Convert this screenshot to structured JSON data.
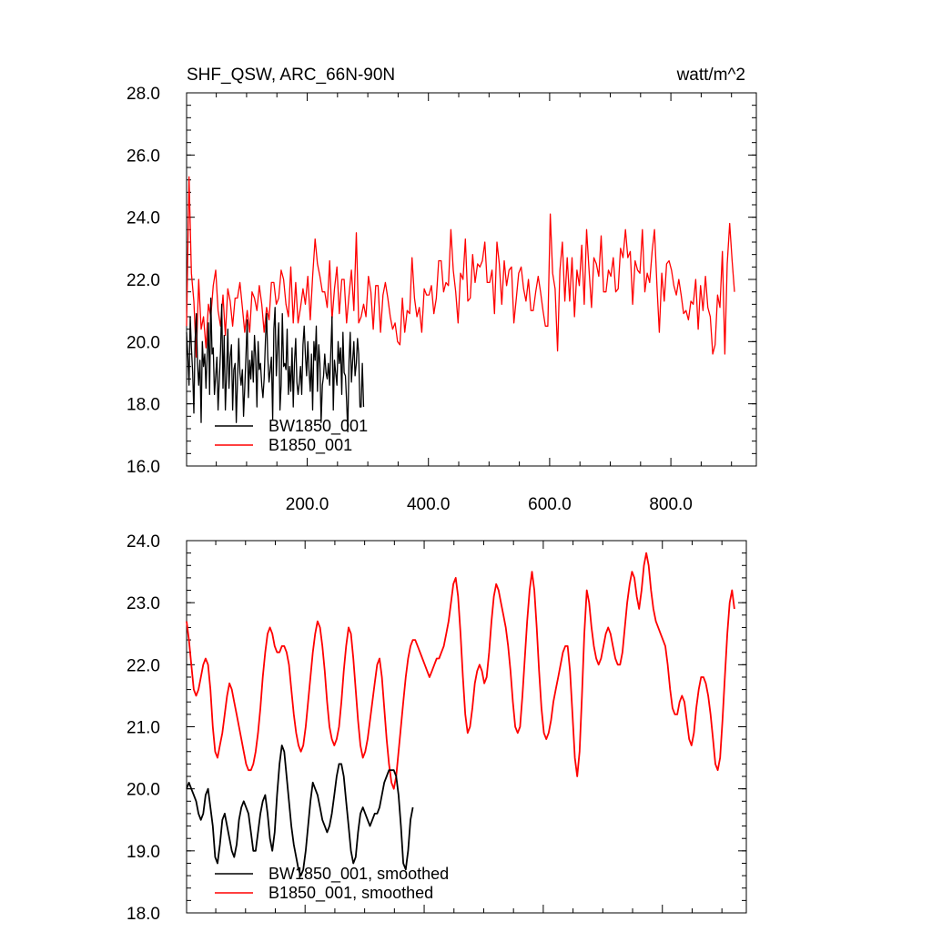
{
  "chart_data": [
    {
      "type": "line",
      "title": "SHF_QSW, ARC_66N-90N",
      "units": "watt/m^2",
      "xlim": [
        1,
        941
      ],
      "ylim": [
        16.0,
        28.0
      ],
      "yticks": [
        "16.0",
        "18.0",
        "20.0",
        "22.0",
        "24.0",
        "26.0",
        "28.0"
      ],
      "xticks": [
        "200.0",
        "400.0",
        "600.0",
        "800.0"
      ],
      "legend_position": "bottom-left",
      "series": [
        {
          "name": "BW1850_001",
          "color": "#000000",
          "x_start": 1,
          "x_step": 2,
          "values": [
            20.3,
            19.6,
            18.6,
            20.8,
            19.8,
            19.0,
            17.7,
            20.0,
            20.9,
            19.3,
            18.6,
            19.4,
            17.4,
            20.0,
            19.2,
            19.6,
            18.5,
            19.5,
            20.6,
            18.3,
            21.4,
            19.6,
            19.8,
            18.3,
            18.9,
            19.5,
            17.8,
            18.8,
            19.7,
            21.2,
            18.5,
            20.2,
            17.8,
            19.0,
            20.4,
            18.5,
            19.5,
            19.9,
            17.8,
            19.1,
            19.3,
            17.4,
            18.7,
            20.1,
            19.0,
            18.6,
            19.1,
            17.6,
            18.5,
            19.6,
            20.7,
            18.2,
            19.4,
            18.8,
            19.7,
            18.7,
            20.2,
            19.5,
            17.9,
            20.0,
            19.1,
            19.3,
            18.6,
            18.2,
            18.8,
            20.0,
            20.9,
            19.5,
            18.7,
            19.1,
            19.5,
            17.5,
            20.4,
            21.1,
            18.9,
            19.8,
            20.6,
            17.8,
            18.6,
            20.9,
            19.2,
            19.3,
            19.1,
            20.4,
            18.3,
            19.2,
            18.4,
            19.8,
            17.9,
            19.3,
            20.1,
            18.7,
            18.3,
            18.7,
            19.2,
            18.3,
            19.9,
            20.5,
            19.6,
            18.9,
            20.0,
            19.1,
            18.4,
            19.6,
            17.8,
            20.0,
            19.4,
            20.5,
            18.4,
            19.9,
            19.3,
            17.4,
            18.6,
            18.9,
            19.6,
            19.0,
            18.8,
            19.3,
            18.6,
            19.7,
            20.8,
            17.8,
            19.4,
            19.0,
            18.6,
            20.0,
            19.3,
            19.8,
            18.3,
            20.3,
            19.0,
            18.9,
            18.1,
            17.1,
            19.4,
            20.3,
            18.7,
            19.4,
            20.0,
            18.9,
            19.3,
            20.1,
            19.6,
            17.9,
            17.9,
            19.3,
            17.9
          ]
        },
        {
          "name": "B1850_001",
          "color": "#ff0000",
          "x_start": 1,
          "x_step": 4,
          "values": [
            20.5,
            25.3,
            22.2,
            21.3,
            19.5,
            22.0,
            20.4,
            20.8,
            19.8,
            21.2,
            20.8,
            21.8,
            22.3,
            21.0,
            20.5,
            21.5,
            20.2,
            21.7,
            21.3,
            20.5,
            21.4,
            21.4,
            21.9,
            21.1,
            20.3,
            21.0,
            20.3,
            21.6,
            21.4,
            21.0,
            21.8,
            21.2,
            20.3,
            21.1,
            20.7,
            21.9,
            21.9,
            21.2,
            21.4,
            22.3,
            22.0,
            21.2,
            20.8,
            22.4,
            20.6,
            21.9,
            20.6,
            21.1,
            21.7,
            21.2,
            22.1,
            20.7,
            22.1,
            23.3,
            22.5,
            22.1,
            21.6,
            21.6,
            21.1,
            22.6,
            20.7,
            21.7,
            22.4,
            20.9,
            22.0,
            22.0,
            20.6,
            21.5,
            22.3,
            21.0,
            23.5,
            20.6,
            20.8,
            21.2,
            20.8,
            22.1,
            21.6,
            20.4,
            21.8,
            21.8,
            20.3,
            21.5,
            21.9,
            21.4,
            20.8,
            20.4,
            20.6,
            20.0,
            19.9,
            21.4,
            20.3,
            21.0,
            20.9,
            22.7,
            21.4,
            20.8,
            21.1,
            20.3,
            21.7,
            21.5,
            21.5,
            21.8,
            20.9,
            21.4,
            22.6,
            22.6,
            21.6,
            21.9,
            21.8,
            23.6,
            22.3,
            21.6,
            20.6,
            22.2,
            22.0,
            23.3,
            21.3,
            21.4,
            22.8,
            21.9,
            22.5,
            22.4,
            22.6,
            23.2,
            21.9,
            21.9,
            22.3,
            20.9,
            23.2,
            22.5,
            21.2,
            22.6,
            21.8,
            22.3,
            22.4,
            20.6,
            21.4,
            22.2,
            22.4,
            21.7,
            21.3,
            22.0,
            21.0,
            21.0,
            21.6,
            22.1,
            21.6,
            21.0,
            20.5,
            20.5,
            24.1,
            22.2,
            21.7,
            19.7,
            22.3,
            23.2,
            21.3,
            22.7,
            21.3,
            22.7,
            20.8,
            22.3,
            21.8,
            23.1,
            21.2,
            23.6,
            22.3,
            21.1,
            22.7,
            22.5,
            22.1,
            23.4,
            21.6,
            21.6,
            22.3,
            22.1,
            22.7,
            21.6,
            21.7,
            23.0,
            22.7,
            23.6,
            22.7,
            22.9,
            21.2,
            22.6,
            22.3,
            22.2,
            23.6,
            21.6,
            22.2,
            21.9,
            22.9,
            23.6,
            21.8,
            20.3,
            22.2,
            21.3,
            22.5,
            22.6,
            22.3,
            21.8,
            21.5,
            22.0,
            21.5,
            20.9,
            21.0,
            20.7,
            21.3,
            21.2,
            22.0,
            20.4,
            21.8,
            21.0,
            22.1,
            21.1,
            20.8,
            19.6,
            19.9,
            21.5,
            21.1,
            22.9,
            19.6,
            22.5,
            23.8,
            22.6,
            21.6
          ]
        }
      ]
    },
    {
      "type": "line",
      "xlim": [
        1,
        941
      ],
      "ylim": [
        18.0,
        24.0
      ],
      "yticks": [
        "18.0",
        "19.0",
        "20.0",
        "21.0",
        "22.0",
        "23.0",
        "24.0"
      ],
      "legend_position": "bottom-left",
      "series": [
        {
          "name": "BW1850_001, smoothed",
          "color": "#000000",
          "x_start": 1,
          "x_step": 4,
          "values": [
            20.0,
            20.1,
            20.0,
            19.9,
            19.8,
            19.6,
            19.5,
            19.6,
            19.9,
            20.0,
            19.7,
            19.4,
            18.9,
            18.8,
            19.1,
            19.5,
            19.6,
            19.4,
            19.2,
            19.0,
            18.9,
            19.1,
            19.5,
            19.7,
            19.8,
            19.7,
            19.6,
            19.3,
            19.0,
            19.0,
            19.3,
            19.6,
            19.8,
            19.9,
            19.6,
            19.2,
            19.0,
            19.3,
            19.9,
            20.4,
            20.7,
            20.6,
            20.2,
            19.8,
            19.4,
            19.1,
            18.9,
            18.7,
            18.6,
            18.7,
            19.0,
            19.4,
            19.8,
            20.1,
            20.0,
            19.9,
            19.7,
            19.5,
            19.4,
            19.3,
            19.4,
            19.6,
            19.9,
            20.2,
            20.4,
            20.4,
            20.2,
            19.8,
            19.4,
            19.0,
            18.8,
            18.9,
            19.3,
            19.6,
            19.7,
            19.6,
            19.5,
            19.4,
            19.5,
            19.6,
            19.6,
            19.7,
            19.9,
            20.1,
            20.2,
            20.3,
            20.3,
            20.3,
            20.2,
            19.9,
            19.4,
            18.8,
            18.7,
            19.0,
            19.5,
            19.7
          ]
        },
        {
          "name": "B1850_001, smoothed",
          "color": "#ff0000",
          "x_start": 1,
          "x_step": 4,
          "values": [
            22.7,
            22.4,
            22.0,
            21.6,
            21.5,
            21.6,
            21.8,
            22.0,
            22.1,
            22.0,
            21.6,
            21.0,
            20.6,
            20.5,
            20.7,
            20.9,
            21.2,
            21.5,
            21.7,
            21.6,
            21.4,
            21.2,
            21.0,
            20.8,
            20.6,
            20.4,
            20.3,
            20.3,
            20.4,
            20.6,
            20.9,
            21.3,
            21.8,
            22.2,
            22.5,
            22.6,
            22.5,
            22.3,
            22.2,
            22.2,
            22.3,
            22.3,
            22.2,
            22.0,
            21.6,
            21.2,
            20.9,
            20.7,
            20.6,
            20.7,
            21.0,
            21.4,
            21.8,
            22.2,
            22.5,
            22.7,
            22.6,
            22.3,
            21.9,
            21.4,
            21.0,
            20.8,
            20.7,
            20.8,
            21.0,
            21.4,
            21.9,
            22.3,
            22.6,
            22.5,
            22.1,
            21.6,
            21.1,
            20.7,
            20.5,
            20.6,
            20.8,
            21.1,
            21.4,
            21.7,
            22.0,
            22.1,
            21.8,
            21.3,
            20.8,
            20.4,
            20.1,
            20.0,
            20.2,
            20.6,
            21.0,
            21.4,
            21.8,
            22.1,
            22.3,
            22.4,
            22.4,
            22.3,
            22.2,
            22.1,
            22.0,
            21.9,
            21.8,
            21.9,
            22.0,
            22.1,
            22.1,
            22.2,
            22.3,
            22.5,
            22.7,
            23.0,
            23.3,
            23.4,
            23.1,
            22.5,
            21.8,
            21.2,
            20.9,
            21.0,
            21.3,
            21.7,
            21.9,
            22.0,
            21.9,
            21.7,
            21.8,
            22.2,
            22.7,
            23.1,
            23.3,
            23.2,
            23.0,
            22.8,
            22.6,
            22.3,
            21.9,
            21.4,
            21.0,
            20.9,
            21.0,
            21.5,
            22.1,
            22.7,
            23.2,
            23.5,
            23.2,
            22.6,
            21.9,
            21.3,
            20.9,
            20.8,
            20.9,
            21.1,
            21.4,
            21.6,
            21.8,
            22.0,
            22.2,
            22.3,
            22.3,
            21.9,
            21.2,
            20.5,
            20.2,
            20.6,
            21.5,
            22.5,
            23.2,
            23.0,
            22.6,
            22.3,
            22.1,
            22.0,
            22.1,
            22.3,
            22.5,
            22.6,
            22.5,
            22.3,
            22.1,
            22.0,
            22.0,
            22.2,
            22.6,
            23.0,
            23.3,
            23.5,
            23.4,
            23.1,
            22.9,
            23.2,
            23.6,
            23.8,
            23.6,
            23.2,
            22.9,
            22.7,
            22.6,
            22.5,
            22.4,
            22.3,
            22.0,
            21.6,
            21.3,
            21.2,
            21.2,
            21.4,
            21.5,
            21.4,
            21.1,
            20.8,
            20.7,
            20.9,
            21.3,
            21.6,
            21.8,
            21.8,
            21.7,
            21.5,
            21.2,
            20.8,
            20.4,
            20.3,
            20.5,
            21.1,
            21.8,
            22.5,
            23.0,
            23.2,
            22.9
          ]
        }
      ]
    }
  ]
}
